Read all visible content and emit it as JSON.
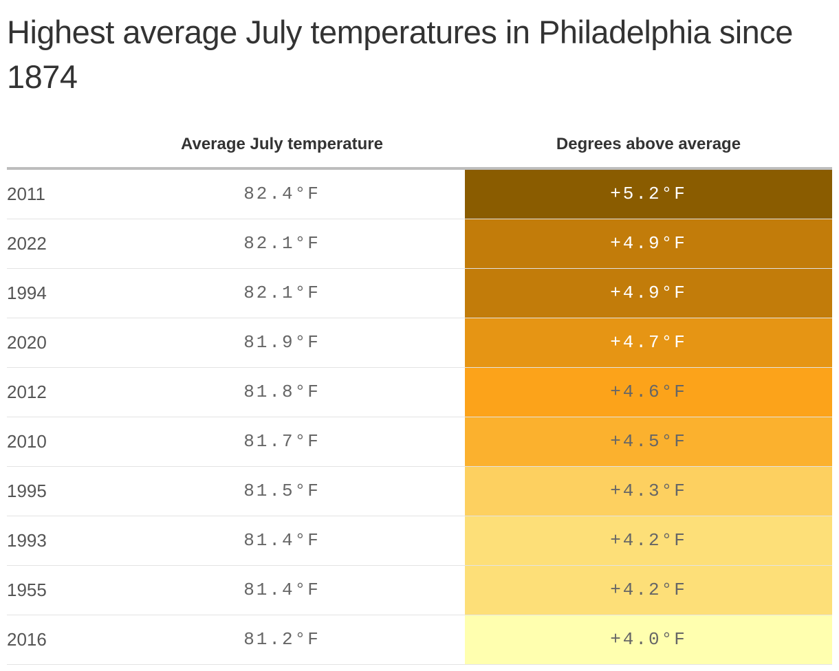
{
  "title": "Highest average July temperatures in Philadelphia since 1874",
  "headers": {
    "year": "",
    "temperature": "Average July temperature",
    "above": "Degrees above average"
  },
  "rows": [
    {
      "year": "2011",
      "temperature": "82.4°F",
      "above": "+5.2°F",
      "color": "#8a5c00",
      "text_color": "#ffffff"
    },
    {
      "year": "2022",
      "temperature": "82.1°F",
      "above": "+4.9°F",
      "color": "#c27c0a",
      "text_color": "#ffffff"
    },
    {
      "year": "1994",
      "temperature": "82.1°F",
      "above": "+4.9°F",
      "color": "#c27c0a",
      "text_color": "#ffffff"
    },
    {
      "year": "2020",
      "temperature": "81.9°F",
      "above": "+4.7°F",
      "color": "#e69514",
      "text_color": "#ffffff"
    },
    {
      "year": "2012",
      "temperature": "81.8°F",
      "above": "+4.6°F",
      "color": "#fca31a",
      "text_color": "#666666"
    },
    {
      "year": "2010",
      "temperature": "81.7°F",
      "above": "+4.5°F",
      "color": "#fbb12e",
      "text_color": "#666666"
    },
    {
      "year": "1995",
      "temperature": "81.5°F",
      "above": "+4.3°F",
      "color": "#fdd060",
      "text_color": "#666666"
    },
    {
      "year": "1993",
      "temperature": "81.4°F",
      "above": "+4.2°F",
      "color": "#fddf78",
      "text_color": "#666666"
    },
    {
      "year": "1955",
      "temperature": "81.4°F",
      "above": "+4.2°F",
      "color": "#fddf78",
      "text_color": "#666666"
    },
    {
      "year": "2016",
      "temperature": "81.2°F",
      "above": "+4.0°F",
      "color": "#ffffaf",
      "text_color": "#666666"
    }
  ],
  "chart_data": {
    "type": "table",
    "title": "Highest average July temperatures in Philadelphia since 1874",
    "columns": [
      "",
      "Average July temperature",
      "Degrees above average"
    ],
    "x": [
      "2011",
      "2022",
      "1994",
      "2020",
      "2012",
      "2010",
      "1995",
      "1993",
      "1955",
      "2016"
    ],
    "series": [
      {
        "name": "Average July temperature",
        "values": [
          82.4,
          82.1,
          82.1,
          81.9,
          81.8,
          81.7,
          81.5,
          81.4,
          81.4,
          81.2
        ]
      },
      {
        "name": "Degrees above average",
        "values": [
          5.2,
          4.9,
          4.9,
          4.7,
          4.6,
          4.5,
          4.3,
          4.2,
          4.2,
          4.0
        ]
      }
    ],
    "units": "°F"
  }
}
